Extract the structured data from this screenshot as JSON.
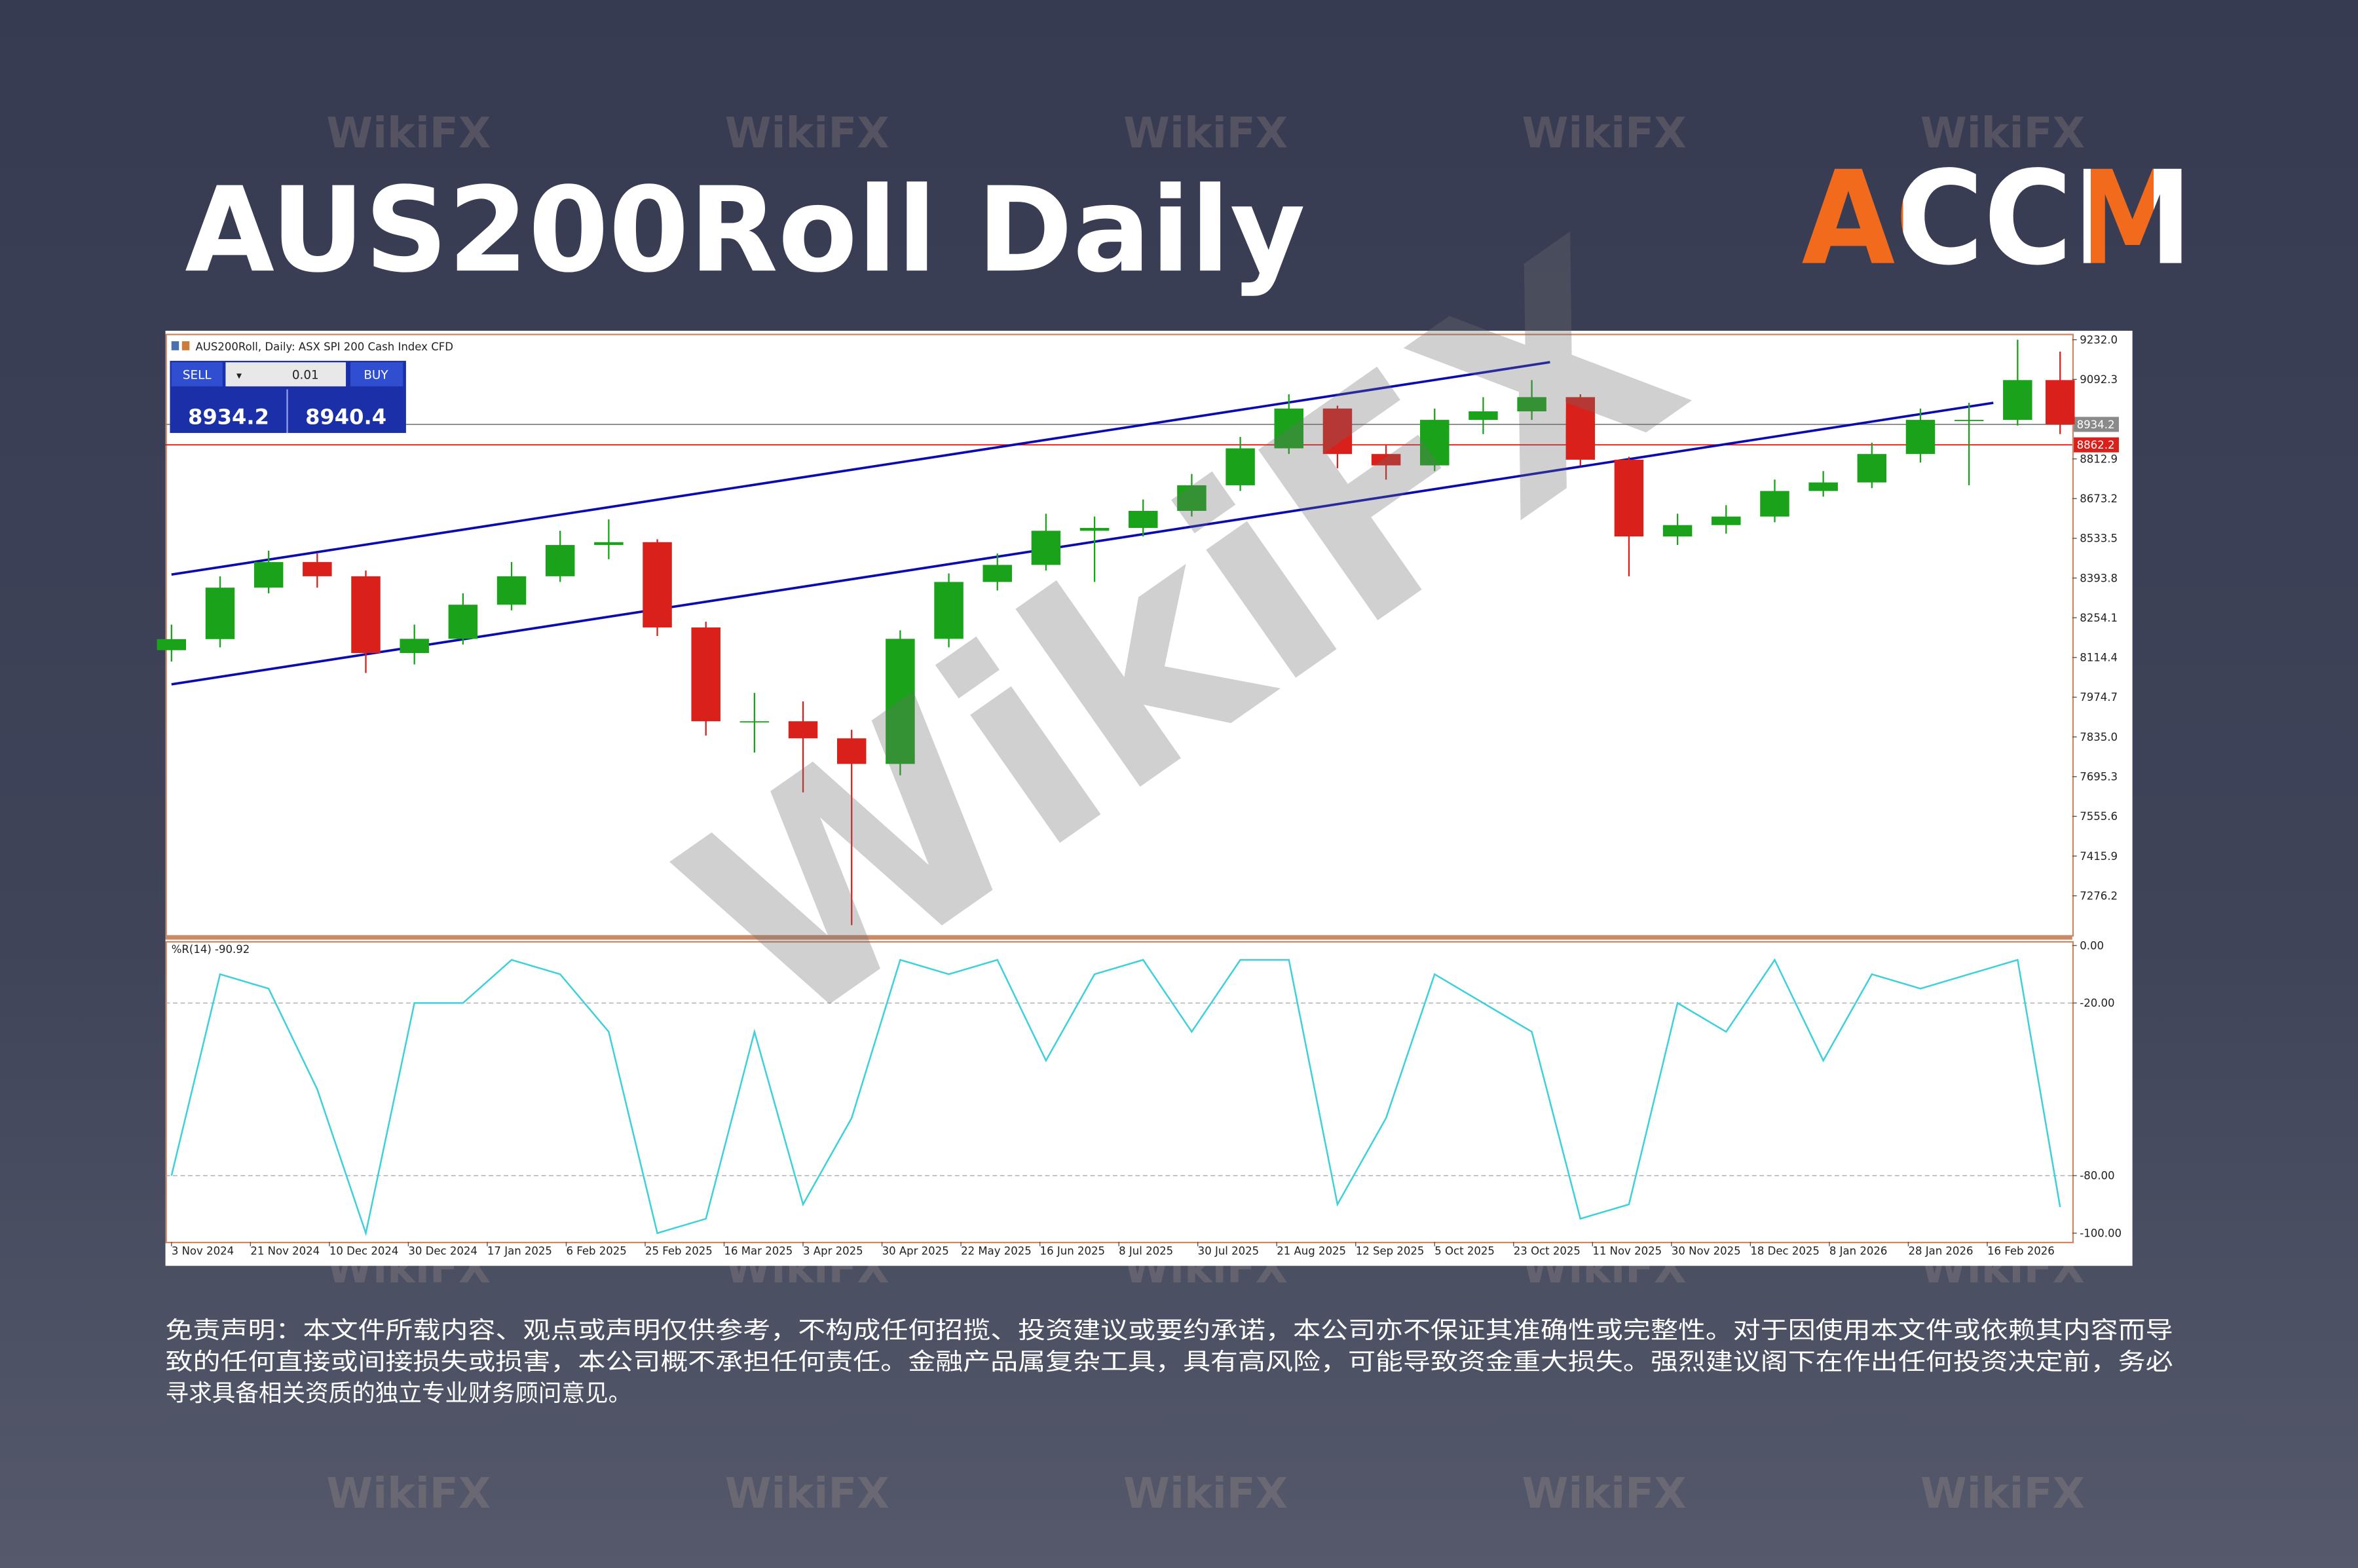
{
  "header": {
    "title": "AUS200Roll Daily",
    "logo": "ACCM"
  },
  "watermark": "WikiFX",
  "trade_panel": {
    "sell": "SELL",
    "buy": "BUY",
    "volume": "0.01",
    "sell_price": 8934.2,
    "buy_price": 8940.4
  },
  "chart_data": [
    {
      "type": "candlestick",
      "title": "AUS200Roll, Daily: ASX SPI 200 Cash Index CFD",
      "x": [
        0,
        8,
        16,
        24,
        32,
        40,
        48,
        56,
        64,
        72,
        80,
        88,
        96,
        104,
        112,
        120,
        128,
        136,
        144,
        152,
        160,
        168,
        176,
        184,
        192,
        200,
        208,
        216,
        224,
        232,
        240,
        248,
        256,
        264,
        272,
        280,
        288,
        296,
        304,
        311
      ],
      "open": [
        8140,
        8179,
        8360,
        8450,
        8400,
        8130,
        8180,
        8300,
        8400,
        8510,
        8520,
        8220,
        7890,
        7890,
        7830,
        7740,
        8180,
        8380,
        8440,
        8560,
        8570,
        8630,
        8720,
        8850,
        8990,
        8830,
        8790,
        8950,
        8980,
        9030,
        8810,
        8540,
        8580,
        8610,
        8700,
        8730,
        8830,
        8950,
        8950,
        9090
      ],
      "high": [
        8230,
        8400,
        8490,
        8480,
        8420,
        8230,
        8340,
        8450,
        8560,
        8600,
        8530,
        8240,
        7990,
        7960,
        7860,
        8210,
        8410,
        8480,
        8620,
        8610,
        8670,
        8760,
        8890,
        9040,
        9000,
        8860,
        8990,
        9030,
        9090,
        9040,
        8820,
        8620,
        8650,
        8740,
        8770,
        8870,
        8990,
        9010,
        9232,
        9190
      ],
      "low": [
        8100,
        8150,
        8340,
        8360,
        8060,
        8090,
        8160,
        8280,
        8380,
        8460,
        8190,
        7840,
        7780,
        7640,
        7173,
        7700,
        8150,
        8350,
        8420,
        8380,
        8540,
        8610,
        8700,
        8830,
        8780,
        8740,
        8770,
        8900,
        8950,
        8790,
        8400,
        8510,
        8550,
        8590,
        8680,
        8710,
        8800,
        8720,
        8930,
        8900
      ],
      "close": [
        8179,
        8360,
        8450,
        8400,
        8130,
        8180,
        8300,
        8400,
        8510,
        8520,
        8220,
        7890,
        7890,
        7830,
        7740,
        8180,
        8380,
        8440,
        8560,
        8570,
        8630,
        8720,
        8850,
        8990,
        8830,
        8790,
        8950,
        8980,
        9030,
        8810,
        8540,
        8580,
        8610,
        8700,
        8730,
        8830,
        8950,
        8950,
        9090,
        8934.2
      ],
      "up_color": "#1aa31a",
      "down_color": "#d9201b",
      "xlim": [
        -1,
        313
      ],
      "ylim": [
        7138,
        9253
      ],
      "yticks": [
        {
          "value": 9232.0,
          "label": "9232.0"
        },
        {
          "value": 9092.3,
          "label": "9092.3"
        },
        {
          "value": 8812.9,
          "label": "8812.9"
        },
        {
          "value": 8673.2,
          "label": "8673.2"
        },
        {
          "value": 8533.5,
          "label": "8533.5"
        },
        {
          "value": 8393.8,
          "label": "8393.8"
        },
        {
          "value": 8254.1,
          "label": "8254.1"
        },
        {
          "value": 8114.4,
          "label": "8114.4"
        },
        {
          "value": 7974.7,
          "label": "7974.7"
        },
        {
          "value": 7835.0,
          "label": "7835.0"
        },
        {
          "value": 7695.3,
          "label": "7695.3"
        },
        {
          "value": 7555.6,
          "label": "7555.6"
        },
        {
          "value": 7415.9,
          "label": "7415.9"
        },
        {
          "value": 7276.2,
          "label": "7276.2"
        }
      ],
      "price_lines": [
        {
          "value": 8934.2,
          "color": "#8a8a8a"
        },
        {
          "value": 8862.2,
          "color": "#d9201b"
        }
      ],
      "trendlines": [
        {
          "x": [
            0,
            227
          ],
          "y": [
            8406,
            9153
          ],
          "color": "#0b0bb0"
        },
        {
          "x": [
            0,
            300
          ],
          "y": [
            8020,
            9010
          ],
          "color": "#0b0bb0"
        }
      ]
    },
    {
      "type": "line",
      "title": "%R(14) -90.92",
      "x": [
        0,
        8,
        16,
        24,
        32,
        40,
        48,
        56,
        64,
        72,
        80,
        88,
        96,
        104,
        112,
        120,
        128,
        136,
        144,
        152,
        160,
        168,
        176,
        184,
        192,
        200,
        208,
        216,
        224,
        232,
        240,
        248,
        256,
        264,
        272,
        280,
        288,
        296,
        304,
        311
      ],
      "values": [
        -80,
        -10,
        -15,
        -50,
        -100,
        -20,
        -20,
        -5,
        -10,
        -30,
        -100,
        -95,
        -30,
        -90,
        -60,
        -5,
        -10,
        -5,
        -40,
        -10,
        -5,
        -30,
        -5,
        -5,
        -90,
        -60,
        -10,
        -20,
        -30,
        -95,
        -90,
        -20,
        -30,
        -5,
        -40,
        -10,
        -15,
        -10,
        -5,
        -90.92
      ],
      "color": "#3fd0dc",
      "xlim": [
        -1,
        313
      ],
      "ylim": [
        -103,
        1
      ],
      "yticks": [
        {
          "value": 0,
          "label": "0.00"
        },
        {
          "value": -20,
          "label": "-20.00"
        },
        {
          "value": -80,
          "label": "-80.00"
        },
        {
          "value": -100,
          "label": "-100.00"
        }
      ],
      "levels": [
        -20,
        -80
      ],
      "xticks": [
        {
          "value": 0,
          "label": "3 Nov 2024"
        },
        {
          "value": 13,
          "label": "21 Nov 2024"
        },
        {
          "value": 26,
          "label": "10 Dec 2024"
        },
        {
          "value": 39,
          "label": "30 Dec 2024"
        },
        {
          "value": 52,
          "label": "17 Jan 2025"
        },
        {
          "value": 65,
          "label": "6 Feb 2025"
        },
        {
          "value": 78,
          "label": "25 Feb 2025"
        },
        {
          "value": 91,
          "label": "16 Mar 2025"
        },
        {
          "value": 104,
          "label": "3 Apr 2025"
        },
        {
          "value": 117,
          "label": "30 Apr 2025"
        },
        {
          "value": 130,
          "label": "22 May 2025"
        },
        {
          "value": 143,
          "label": "16 Jun 2025"
        },
        {
          "value": 156,
          "label": "8 Jul 2025"
        },
        {
          "value": 169,
          "label": "30 Jul 2025"
        },
        {
          "value": 182,
          "label": "21 Aug 2025"
        },
        {
          "value": 195,
          "label": "12 Sep 2025"
        },
        {
          "value": 208,
          "label": "5 Oct 2025"
        },
        {
          "value": 221,
          "label": "23 Oct 2025"
        },
        {
          "value": 234,
          "label": "11 Nov 2025"
        },
        {
          "value": 247,
          "label": "30 Nov 2025"
        },
        {
          "value": 260,
          "label": "18 Dec 2025"
        },
        {
          "value": 273,
          "label": "8 Jan 2026"
        },
        {
          "value": 286,
          "label": "28 Jan 2026"
        },
        {
          "value": 299,
          "label": "16 Feb 2026"
        }
      ]
    }
  ],
  "disclaimer": [
    "免责声明：本文件所载内容、观点或声明仅供参考，不构成任何招揽、投资建议或要约承诺，本公司亦不保证其准确性或完整性。对于因使用本文件或依赖其内容而导",
    "致的任何直接或间接损失或损害，本公司概不承担任何责任。金融产品属复杂工具，具有高风险，可能导致资金重大损失。强烈建议阁下在作出任何投资决定前，务必",
    "寻求具备相关资质的独立专业财务顾问意见。"
  ]
}
